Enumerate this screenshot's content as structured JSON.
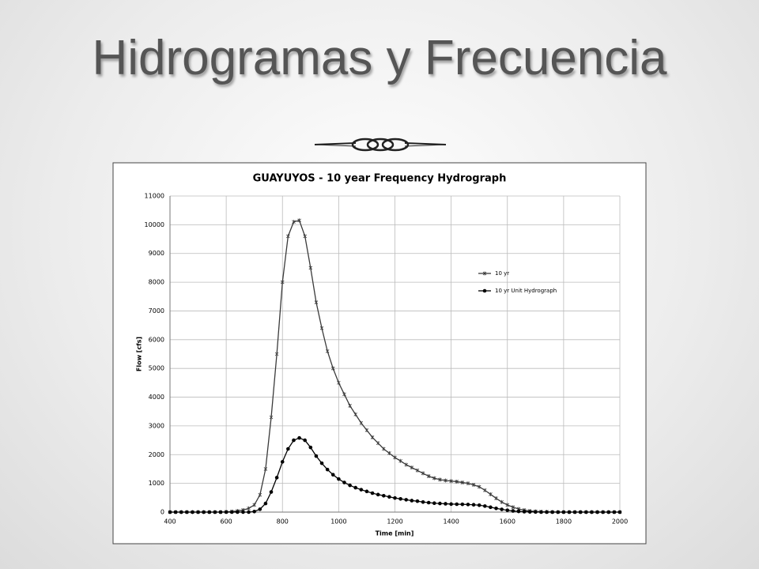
{
  "title": "Hidrogramas y Frecuencia",
  "chart_data": {
    "type": "line",
    "title": "GUAYUYOS - 10 year Frequency Hydrograph",
    "x_label": "Time [min]",
    "y_label": "Flow [cfs]",
    "x": [
      400,
      420,
      440,
      460,
      480,
      500,
      520,
      540,
      560,
      580,
      600,
      620,
      640,
      660,
      680,
      700,
      720,
      740,
      760,
      780,
      800,
      820,
      840,
      860,
      880,
      900,
      920,
      940,
      960,
      980,
      1000,
      1020,
      1040,
      1060,
      1080,
      1100,
      1120,
      1140,
      1160,
      1180,
      1200,
      1220,
      1240,
      1260,
      1280,
      1300,
      1320,
      1340,
      1360,
      1380,
      1400,
      1420,
      1440,
      1460,
      1480,
      1500,
      1520,
      1540,
      1560,
      1580,
      1600,
      1620,
      1640,
      1660,
      1680,
      1700,
      1720,
      1740,
      1760,
      1780,
      1800,
      1820,
      1840,
      1860,
      1880,
      1900,
      1920,
      1940,
      1960,
      1980,
      2000
    ],
    "series": [
      {
        "name": "10 yr",
        "color": "#3a3a3a",
        "marker": "cross",
        "values": [
          0,
          0,
          0,
          0,
          0,
          0,
          0,
          0,
          0,
          0,
          10,
          20,
          40,
          70,
          130,
          250,
          600,
          1500,
          3300,
          5500,
          8000,
          9600,
          10100,
          10150,
          9600,
          8500,
          7300,
          6400,
          5600,
          5000,
          4500,
          4100,
          3700,
          3400,
          3100,
          2850,
          2600,
          2400,
          2200,
          2050,
          1900,
          1780,
          1650,
          1550,
          1450,
          1350,
          1250,
          1180,
          1130,
          1100,
          1080,
          1060,
          1030,
          1000,
          950,
          880,
          760,
          620,
          480,
          350,
          250,
          170,
          110,
          70,
          40,
          25,
          15,
          10,
          5,
          0,
          0,
          0,
          0,
          0,
          0,
          0,
          0,
          0,
          0,
          0,
          0
        ]
      },
      {
        "name": "10 yr Unit Hydrograph",
        "color": "#000000",
        "marker": "circle",
        "values": [
          0,
          0,
          0,
          0,
          0,
          0,
          0,
          0,
          0,
          0,
          0,
          0,
          0,
          0,
          0,
          20,
          100,
          300,
          700,
          1200,
          1750,
          2200,
          2500,
          2580,
          2500,
          2250,
          1950,
          1700,
          1480,
          1300,
          1150,
          1030,
          930,
          850,
          780,
          720,
          660,
          610,
          570,
          530,
          490,
          460,
          430,
          400,
          380,
          350,
          330,
          310,
          300,
          290,
          280,
          275,
          270,
          265,
          255,
          240,
          210,
          170,
          130,
          95,
          65,
          40,
          25,
          15,
          8,
          4,
          0,
          0,
          0,
          0,
          0,
          0,
          0,
          0,
          0,
          0,
          0,
          0,
          0,
          0,
          0
        ]
      }
    ],
    "xlim": [
      400,
      2000
    ],
    "xticks": [
      400,
      600,
      800,
      1000,
      1200,
      1400,
      1600,
      1800,
      2000
    ],
    "ylim": [
      0,
      11000
    ],
    "yticks": [
      0,
      1000,
      2000,
      3000,
      4000,
      5000,
      6000,
      7000,
      8000,
      9000,
      10000,
      11000
    ],
    "grid": true,
    "legend": "upper right"
  }
}
